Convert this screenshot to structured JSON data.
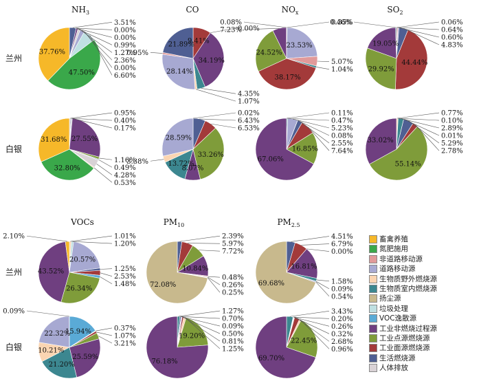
{
  "category_colors": {
    "畜禽养殖": "#f6b829",
    "氮肥施用": "#3aa84a",
    "非道路移动源": "#e19a9a",
    "道路移动源": "#a7a9d2",
    "生物质野外燃烧源": "#fbd5b2",
    "生物质室内燃烧源": "#3c8790",
    "扬尘源": "#c8b98d",
    "垃圾处理": "#bfe0e2",
    "VOC逸散源": "#5aaad6",
    "工业非燃烧过程源": "#6f3f80",
    "工业点源燃烧源": "#7f9c3a",
    "工业面源燃烧源": "#a33a3a",
    "生活燃烧源": "#4f5f93",
    "人体排放": "#d9d2d6"
  },
  "chart_data": {
    "type": "pie",
    "title": "",
    "row_labels": [
      "兰州",
      "白银",
      "兰州",
      "白银"
    ],
    "column_titles_top": [
      {
        "text": "NH",
        "sub": "3"
      },
      {
        "text": "CO",
        "sub": ""
      },
      {
        "text": "NO",
        "sub": "x"
      },
      {
        "text": "SO",
        "sub": "2"
      }
    ],
    "column_titles_bottom": [
      {
        "text": "VOCs",
        "sub": ""
      },
      {
        "text": "PM",
        "sub": "10"
      },
      {
        "text": "PM",
        "sub": "2.5"
      }
    ],
    "legend": [
      "畜禽养殖",
      "氮肥施用",
      "非道路移动源",
      "道路移动源",
      "生物质野外燃烧源",
      "生物质室内燃烧源",
      "扬尘源",
      "垃圾处理",
      "VOC逸散源",
      "工业非燃烧过程源",
      "工业点源燃烧源",
      "工业面源燃烧源",
      "生活燃烧源",
      "人体排放"
    ],
    "pies": [
      {
        "city": "兰州",
        "pollutant": "NH3",
        "slices": [
          {
            "c": "生活燃烧源",
            "v": 3.51,
            "l": "3.51%"
          },
          {
            "c": "工业面源燃烧源",
            "v": 0.0,
            "l": "0.00%"
          },
          {
            "c": "工业点源燃烧源",
            "v": 0.0,
            "l": "0.00%"
          },
          {
            "c": "工业非燃烧过程源",
            "v": 0.99,
            "l": "0.99%"
          },
          {
            "c": "人体排放",
            "v": 1.27,
            "l": "1.27%"
          },
          {
            "c": "道路移动源",
            "v": 2.36,
            "l": "2.36%"
          },
          {
            "c": "非道路移动源",
            "v": 0.0,
            "l": "0.00%"
          },
          {
            "c": "垃圾处理",
            "v": 6.6,
            "l": "6.60%"
          },
          {
            "c": "氮肥施用",
            "v": 47.5,
            "l": "47.50%"
          },
          {
            "c": "畜禽养殖",
            "v": 37.76,
            "l": "37.76%"
          }
        ]
      },
      {
        "city": "兰州",
        "pollutant": "CO",
        "slices": [
          {
            "c": "工业面源燃烧源",
            "v": 9.41,
            "l": "9.41%"
          },
          {
            "c": "工业点源燃烧源",
            "v": 0.0,
            "l": "0.00%"
          },
          {
            "c": "工业非燃烧过程源",
            "v": 34.19,
            "l": "34.19%"
          },
          {
            "c": "生物质室内燃烧源",
            "v": 4.35,
            "l": "4.35%"
          },
          {
            "c": "生物质野外燃烧源",
            "v": 1.07,
            "l": "1.07%"
          },
          {
            "c": "道路移动源",
            "v": 28.14,
            "l": "28.14%"
          },
          {
            "c": "非道路移动源",
            "v": 0.95,
            "l": "0.95%"
          },
          {
            "c": "生活燃烧源",
            "v": 21.89,
            "l": "21.89%"
          }
        ]
      },
      {
        "city": "兰州",
        "pollutant": "NOx",
        "slices": [
          {
            "c": "生活燃烧源",
            "v": 0.35,
            "l": "0.35%"
          },
          {
            "c": "道路移动源",
            "v": 23.53,
            "l": "23.53%"
          },
          {
            "c": "非道路移动源",
            "v": 5.07,
            "l": "5.07%"
          },
          {
            "c": "生物质室内燃烧源",
            "v": 1.04,
            "l": "1.04%"
          },
          {
            "c": "工业面源燃烧源",
            "v": 38.17,
            "l": "38.17%"
          },
          {
            "c": "工业点源燃烧源",
            "v": 24.52,
            "l": "24.52%"
          },
          {
            "c": "工业非燃烧过程源",
            "v": 7.23,
            "l": "7.23%"
          },
          {
            "c": "生物质野外燃烧源",
            "v": 0.08,
            "l": "0.08%"
          }
        ]
      },
      {
        "city": "兰州",
        "pollutant": "SO2",
        "slices": [
          {
            "c": "生物质野外燃烧源",
            "v": 0.06,
            "l": "0.06%"
          },
          {
            "c": "非道路移动源",
            "v": 0.64,
            "l": "0.64%"
          },
          {
            "c": "道路移动源",
            "v": 0.6,
            "l": "0.60%"
          },
          {
            "c": "生活燃烧源",
            "v": 4.83,
            "l": "4.83%"
          },
          {
            "c": "工业面源燃烧源",
            "v": 44.44,
            "l": "44.44%"
          },
          {
            "c": "工业点源燃烧源",
            "v": 29.92,
            "l": "29.92%"
          },
          {
            "c": "工业非燃烧过程源",
            "v": 19.05,
            "l": "19.05%"
          },
          {
            "c": "生物质室内燃烧源",
            "v": 0.46,
            "l": "0.46%"
          }
        ]
      },
      {
        "city": "白银",
        "pollutant": "NH3",
        "slices": [
          {
            "c": "人体排放",
            "v": 0.95,
            "l": "0.95%"
          },
          {
            "c": "生活燃烧源",
            "v": 0.4,
            "l": "0.40%"
          },
          {
            "c": "工业面源燃烧源",
            "v": 0.17,
            "l": "0.17%"
          },
          {
            "c": "工业非燃烧过程源",
            "v": 27.55,
            "l": "27.55%"
          },
          {
            "c": "工业点源燃烧源",
            "v": 1.16,
            "l": "1.16%"
          },
          {
            "c": "道路移动源",
            "v": 0.49,
            "l": "0.49%"
          },
          {
            "c": "人体排放",
            "v": 4.28,
            "l": "4.28%"
          },
          {
            "c": "生物质野外燃烧源",
            "v": 0.53,
            "l": "0.53%"
          },
          {
            "c": "氮肥施用",
            "v": 32.8,
            "l": "32.80%"
          },
          {
            "c": "畜禽养殖",
            "v": 31.68,
            "l": "31.68%"
          }
        ]
      },
      {
        "city": "白银",
        "pollutant": "CO",
        "slices": [
          {
            "c": "非道路移动源",
            "v": 0.02,
            "l": "0.02%"
          },
          {
            "c": "生活燃烧源",
            "v": 6.43,
            "l": "6.43%"
          },
          {
            "c": "工业面源燃烧源",
            "v": 6.53,
            "l": "6.53%"
          },
          {
            "c": "工业点源燃烧源",
            "v": 33.26,
            "l": "33.26%"
          },
          {
            "c": "工业非燃烧过程源",
            "v": 8.07,
            "l": "8.07%"
          },
          {
            "c": "生物质室内燃烧源",
            "v": 13.72,
            "l": "13.72%"
          },
          {
            "c": "生物质野外燃烧源",
            "v": 3.38,
            "l": "3.38%"
          },
          {
            "c": "道路移动源",
            "v": 28.59,
            "l": "28.59%"
          }
        ]
      },
      {
        "city": "白银",
        "pollutant": "NOx",
        "slices": [
          {
            "c": "生物质野外燃烧源",
            "v": 0.11,
            "l": "0.11%"
          },
          {
            "c": "生物质室内燃烧源",
            "v": 0.47,
            "l": "0.47%"
          },
          {
            "c": "道路移动源",
            "v": 5.23,
            "l": "5.23%"
          },
          {
            "c": "非道路移动源",
            "v": 0.08,
            "l": "0.08%"
          },
          {
            "c": "生活燃烧源",
            "v": 2.55,
            "l": "2.55%"
          },
          {
            "c": "工业面源燃烧源",
            "v": 7.64,
            "l": "7.64%"
          },
          {
            "c": "工业点源燃烧源",
            "v": 16.85,
            "l": "16.85%"
          },
          {
            "c": "工业非燃烧过程源",
            "v": 67.06,
            "l": "67.06%"
          }
        ]
      },
      {
        "city": "白银",
        "pollutant": "SO2",
        "slices": [
          {
            "c": "生物质野外燃烧源",
            "v": 0.77,
            "l": "0.77%"
          },
          {
            "c": "非道路移动源",
            "v": 0.1,
            "l": "0.10%"
          },
          {
            "c": "生物质室内燃烧源",
            "v": 2.89,
            "l": "2.89%"
          },
          {
            "c": "道路移动源",
            "v": 0.01,
            "l": "0.01%"
          },
          {
            "c": "生活燃烧源",
            "v": 5.29,
            "l": "5.29%"
          },
          {
            "c": "工业面源燃烧源",
            "v": 2.78,
            "l": "2.78%"
          },
          {
            "c": "工业点源燃烧源",
            "v": 55.14,
            "l": "55.14%"
          },
          {
            "c": "工业非燃烧过程源",
            "v": 33.02,
            "l": "33.02%"
          }
        ]
      },
      {
        "city": "兰州",
        "pollutant": "VOCs",
        "slices": [
          {
            "c": "生物质野外燃烧源",
            "v": 1.01,
            "l": "1.01%"
          },
          {
            "c": "垃圾处理",
            "v": 1.2,
            "l": "1.20%"
          },
          {
            "c": "道路移动源",
            "v": 20.57,
            "l": "20.57%"
          },
          {
            "c": "生活燃烧源",
            "v": 1.25,
            "l": "1.25%"
          },
          {
            "c": "工业面源燃烧源",
            "v": 2.53,
            "l": "2.53%"
          },
          {
            "c": "VOC逸散源",
            "v": 1.48,
            "l": "1.48%"
          },
          {
            "c": "工业点源燃烧源",
            "v": 26.34,
            "l": "26.34%"
          },
          {
            "c": "工业非燃烧过程源",
            "v": 43.52,
            "l": "43.52%"
          },
          {
            "c": "畜禽养殖",
            "v": 2.1,
            "l": "2.10%"
          }
        ]
      },
      {
        "city": "兰州",
        "pollutant": "PM10",
        "slices": [
          {
            "c": "生活燃烧源",
            "v": 2.39,
            "l": "2.39%"
          },
          {
            "c": "工业面源燃烧源",
            "v": 5.97,
            "l": "5.97%"
          },
          {
            "c": "工业点源燃烧源",
            "v": 7.72,
            "l": "7.72%"
          },
          {
            "c": "工业非燃烧过程源",
            "v": 10.84,
            "l": "10.84%"
          },
          {
            "c": "非道路移动源",
            "v": 0.48,
            "l": "0.48%"
          },
          {
            "c": "生物质室内燃烧源",
            "v": 0.26,
            "l": "0.26%"
          },
          {
            "c": "道路移动源",
            "v": 0.25,
            "l": "0.25%"
          },
          {
            "c": "扬尘源",
            "v": 72.08,
            "l": "72.08%"
          }
        ]
      },
      {
        "city": "兰州",
        "pollutant": "PM2.5",
        "slices": [
          {
            "c": "生活燃烧源",
            "v": 4.51,
            "l": "4.51%"
          },
          {
            "c": "工业面源燃烧源",
            "v": 6.79,
            "l": "6.79%"
          },
          {
            "c": "人体排放",
            "v": 0.0,
            "l": "0.00%"
          },
          {
            "c": "工业非燃烧过程源",
            "v": 16.81,
            "l": "16.81%"
          },
          {
            "c": "生物质室内燃烧源",
            "v": 1.58,
            "l": "1.58%"
          },
          {
            "c": "非道路移动源",
            "v": 0.09,
            "l": "0.09%"
          },
          {
            "c": "道路移动源",
            "v": 0.54,
            "l": "0.54%"
          },
          {
            "c": "扬尘源",
            "v": 69.68,
            "l": "69.68%"
          }
        ]
      },
      {
        "city": "白银",
        "pollutant": "VOCs",
        "slices": [
          {
            "c": "VOC逸散源",
            "v": 15.94,
            "l": "15.94%"
          },
          {
            "c": "垃圾处理",
            "v": 0.37,
            "l": "0.37%"
          },
          {
            "c": "工业面源燃烧源",
            "v": 1.07,
            "l": "1.07%"
          },
          {
            "c": "工业点源燃烧源",
            "v": 3.21,
            "l": "3.21%"
          },
          {
            "c": "工业非燃烧过程源",
            "v": 25.59,
            "l": "25.59%"
          },
          {
            "c": "生物质室内燃烧源",
            "v": 21.2,
            "l": "21.20%"
          },
          {
            "c": "生物质野外燃烧源",
            "v": 10.21,
            "l": "10.21%"
          },
          {
            "c": "道路移动源",
            "v": 22.32,
            "l": "22.32%"
          },
          {
            "c": "非道路移动源",
            "v": 0.09,
            "l": "0.09%"
          }
        ]
      },
      {
        "city": "白银",
        "pollutant": "PM10",
        "slices": [
          {
            "c": "生物质室内燃烧源",
            "v": 1.27,
            "l": "1.27%"
          },
          {
            "c": "生活燃烧源",
            "v": 0.7,
            "l": "0.70%"
          },
          {
            "c": "非道路移动源",
            "v": 0.09,
            "l": "0.09%"
          },
          {
            "c": "道路移动源",
            "v": 0.5,
            "l": "0.50%"
          },
          {
            "c": "工业面源燃烧源",
            "v": 0.81,
            "l": "0.81%"
          },
          {
            "c": "生物质野外燃烧源",
            "v": 1.25,
            "l": "1.25%"
          },
          {
            "c": "工业点源燃烧源",
            "v": 19.2,
            "l": "19.20%"
          },
          {
            "c": "工业非燃烧过程源",
            "v": 76.18,
            "l": "76.18%"
          }
        ]
      },
      {
        "city": "白银",
        "pollutant": "PM2.5",
        "slices": [
          {
            "c": "生物质室内燃烧源",
            "v": 3.43,
            "l": "3.43%"
          },
          {
            "c": "生活燃烧源",
            "v": 0.2,
            "l": "0.20%"
          },
          {
            "c": "非道路移动源",
            "v": 0.26,
            "l": "0.26%"
          },
          {
            "c": "道路移动源",
            "v": 0.32,
            "l": "0.32%"
          },
          {
            "c": "工业面源燃烧源",
            "v": 2.68,
            "l": "2.68%"
          },
          {
            "c": "生物质野外燃烧源",
            "v": 0.96,
            "l": "0.96%"
          },
          {
            "c": "工业点源燃烧源",
            "v": 22.45,
            "l": "22.45%"
          },
          {
            "c": "工业非燃烧过程源",
            "v": 69.7,
            "l": "69.70%"
          }
        ]
      }
    ]
  }
}
